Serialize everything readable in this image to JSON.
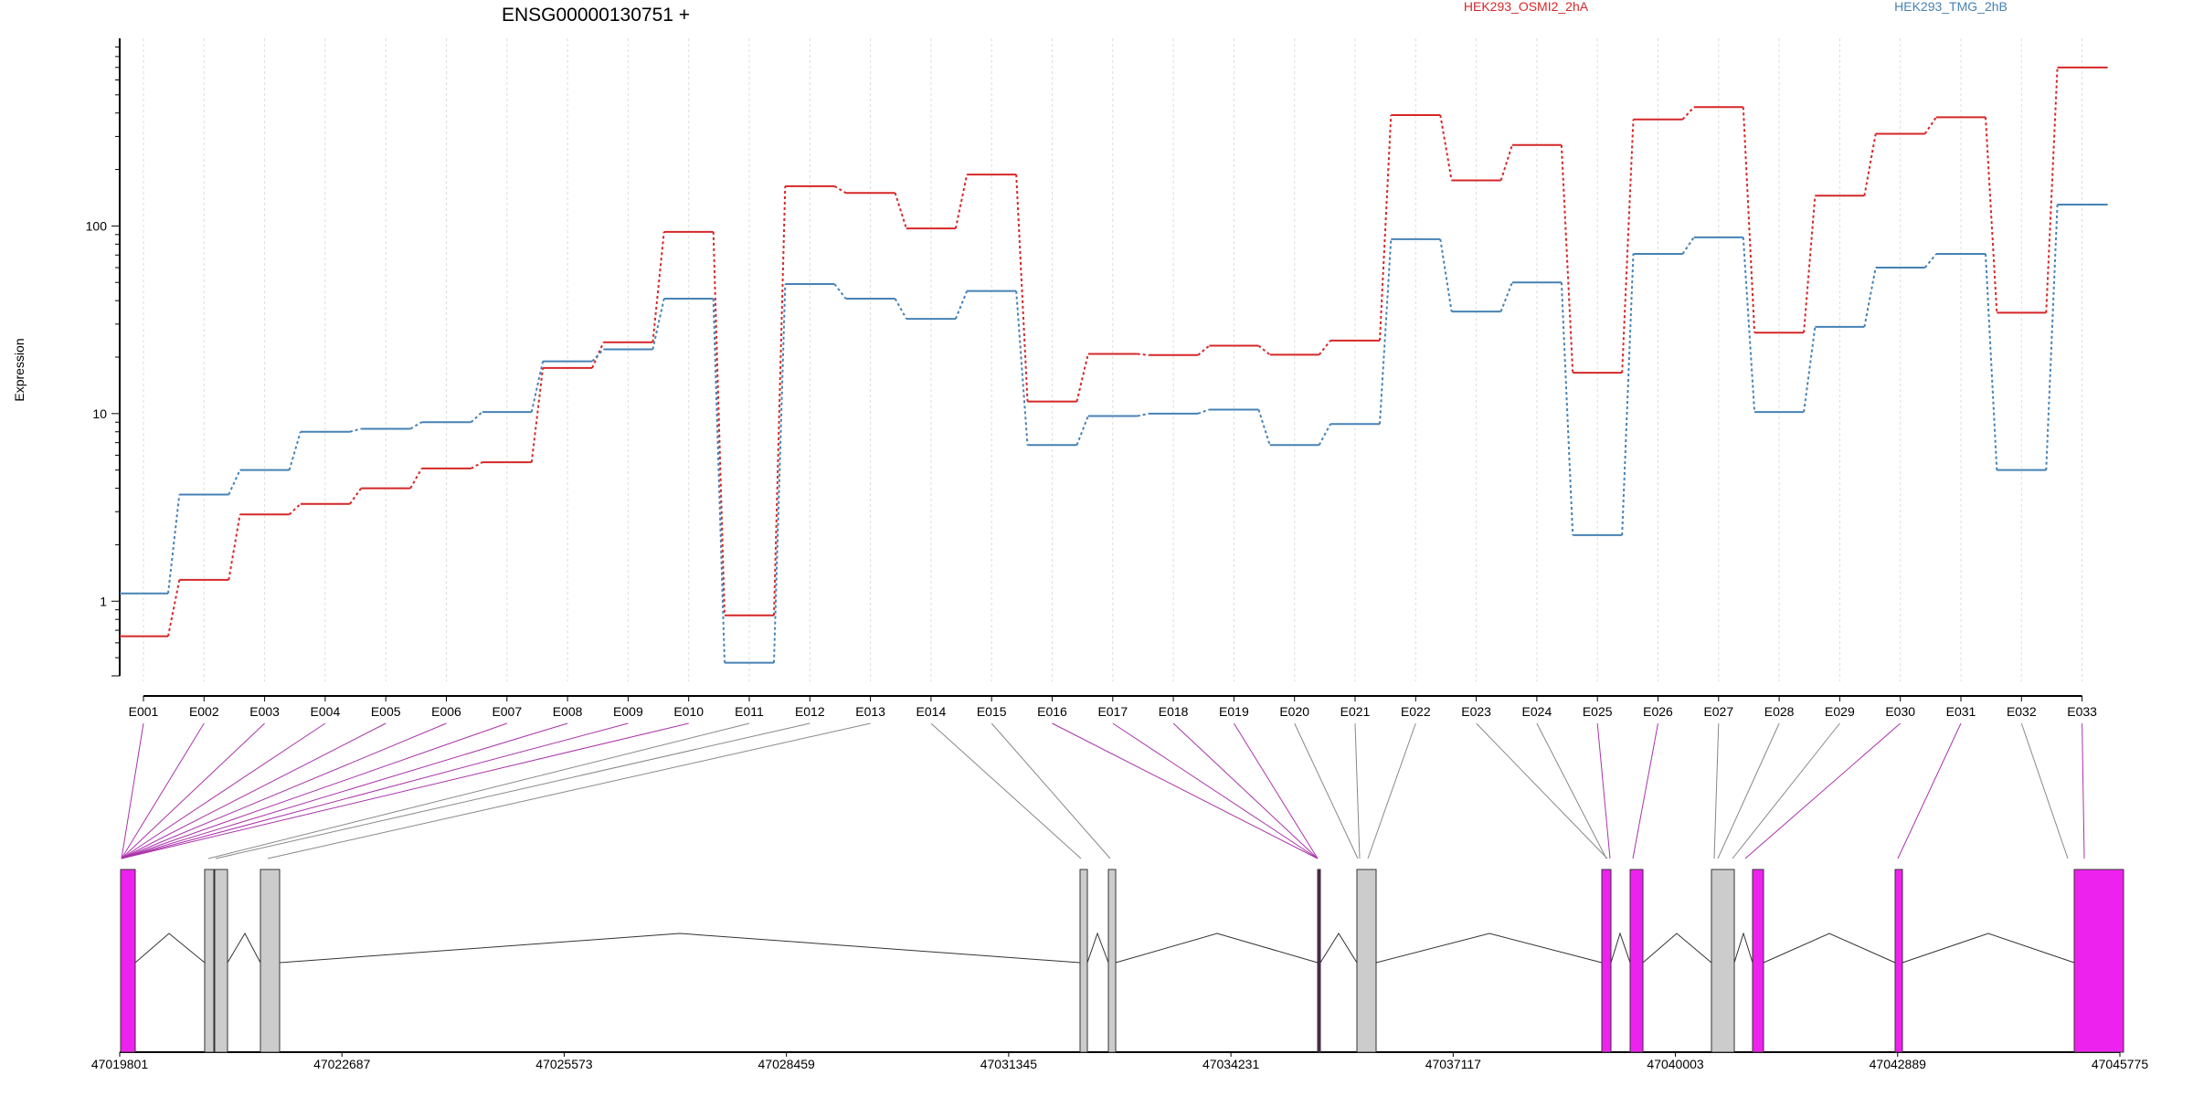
{
  "chart_data": {
    "type": "line",
    "title": "ENSG00000130751 +",
    "ylabel": "Expression",
    "yscale": "log",
    "ylim": [
      0.4,
      1000
    ],
    "yticks": [
      "1",
      "10",
      "100"
    ],
    "categories": [
      "E001",
      "E002",
      "E003",
      "E004",
      "E005",
      "E006",
      "E007",
      "E008",
      "E009",
      "E010",
      "E011",
      "E012",
      "E013",
      "E014",
      "E015",
      "E016",
      "E017",
      "E018",
      "E019",
      "E020",
      "E021",
      "E022",
      "E023",
      "E024",
      "E025",
      "E026",
      "E027",
      "E028",
      "E029",
      "E030",
      "E031",
      "E032",
      "E033"
    ],
    "series": [
      {
        "name": "HEK293_OSMI2_2hA",
        "color": "#d62728",
        "values": [
          0.65,
          1.3,
          2.9,
          3.3,
          4.0,
          5.1,
          5.5,
          17.5,
          24,
          93,
          0.84,
          163,
          150,
          97,
          188,
          11.6,
          20.8,
          20.5,
          23,
          20.6,
          24.5,
          390,
          175,
          270,
          16.5,
          370,
          430,
          27,
          145,
          310,
          380,
          34.5,
          700
        ]
      },
      {
        "name": "HEK293_TMG_2hB",
        "color": "#4682b4",
        "values": [
          1.1,
          3.7,
          5.0,
          8.0,
          8.3,
          9.0,
          10.2,
          19,
          22,
          41,
          0.47,
          49,
          41,
          32,
          45,
          6.8,
          9.7,
          10,
          10.5,
          6.8,
          8.8,
          85,
          35,
          50,
          2.25,
          71,
          87,
          10.2,
          29,
          60,
          71,
          5.0,
          130
        ]
      }
    ],
    "genome": {
      "coordinate_labels": [
        "47019801",
        "47022687",
        "47025573",
        "47028459",
        "47031345",
        "47034231",
        "47037117",
        "47040003",
        "47042889",
        "47045775"
      ],
      "colors": {
        "exon": "#cccccc",
        "highlight": "#ee22ee",
        "connector_grey": "#888888",
        "connector_purple": "#aa33aa"
      }
    }
  }
}
